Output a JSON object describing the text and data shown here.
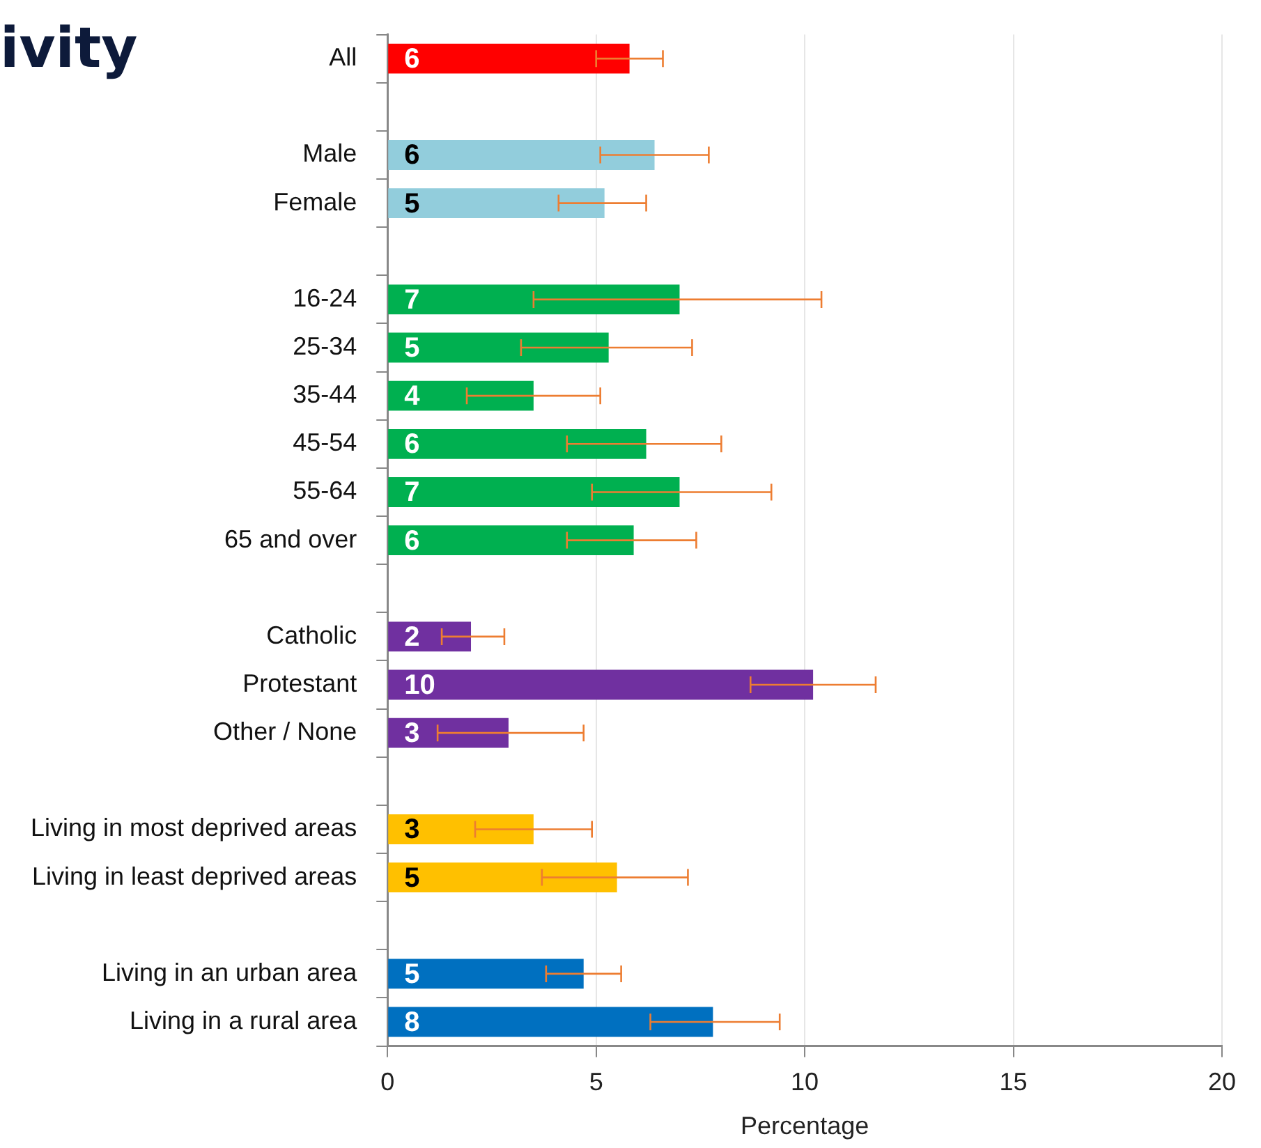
{
  "chart_data": {
    "type": "bar",
    "orientation": "horizontal",
    "title": "ivity",
    "xlabel": "Percentage",
    "categories": [
      "All",
      null,
      "Male",
      "Female",
      null,
      "16-24",
      "25-34",
      "35-44",
      "45-54",
      "55-64",
      "65 and over",
      null,
      "Catholic",
      "Protestant",
      "Other / None",
      null,
      "Living in most deprived areas",
      "Living in least deprived areas",
      null,
      "Living in an urban area",
      "Living in a rural area"
    ],
    "values": [
      5.8,
      null,
      6.4,
      5.2,
      null,
      7.0,
      5.3,
      3.5,
      6.2,
      7.0,
      5.9,
      null,
      2.0,
      10.2,
      2.9,
      null,
      3.5,
      5.5,
      null,
      4.7,
      7.8
    ],
    "value_labels": [
      "6",
      null,
      "6",
      "5",
      null,
      "7",
      "5",
      "4",
      "6",
      "7",
      "6",
      null,
      "2",
      "10",
      "3",
      null,
      "3",
      "5",
      null,
      "5",
      "8"
    ],
    "errors": [
      [
        5.0,
        6.6
      ],
      null,
      [
        5.1,
        7.7
      ],
      [
        4.1,
        6.2
      ],
      null,
      [
        3.5,
        10.4
      ],
      [
        3.2,
        7.3
      ],
      [
        1.9,
        5.1
      ],
      [
        4.3,
        8.0
      ],
      [
        4.9,
        9.2
      ],
      [
        4.3,
        7.4
      ],
      null,
      [
        1.3,
        2.8
      ],
      [
        8.7,
        11.7
      ],
      [
        1.2,
        4.7
      ],
      null,
      [
        2.1,
        4.9
      ],
      [
        3.7,
        7.2
      ],
      null,
      [
        3.8,
        5.6
      ],
      [
        6.3,
        9.4
      ]
    ],
    "colors": [
      "#ff0000",
      null,
      "#92cddc",
      "#92cddc",
      null,
      "#00b050",
      "#00b050",
      "#00b050",
      "#00b050",
      "#00b050",
      "#00b050",
      null,
      "#7030a0",
      "#7030a0",
      "#7030a0",
      null,
      "#ffc000",
      "#ffc000",
      null,
      "#0070c0",
      "#0070c0"
    ],
    "xlim": [
      0,
      20
    ],
    "xticks": [
      0,
      5,
      10,
      15,
      20
    ],
    "grid": "x"
  }
}
